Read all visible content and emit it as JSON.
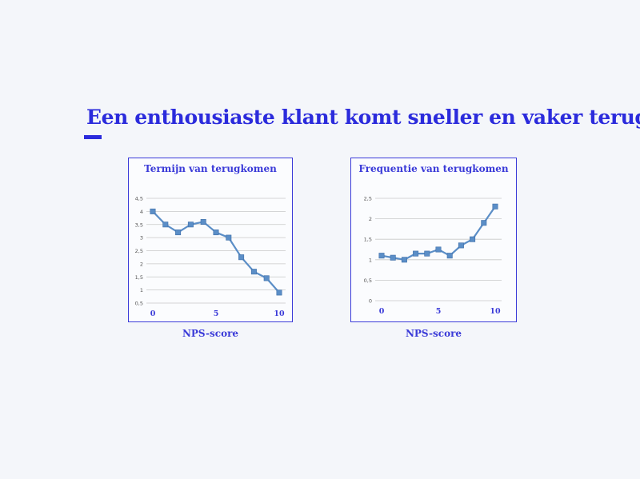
{
  "slide": {
    "title": "Een enthousiaste klant komt sneller en vaker terug"
  },
  "colors": {
    "accent": "#2b2bdc",
    "series": "#5b8ec7",
    "grid": "#c8c8c8"
  },
  "chart_data": [
    {
      "type": "line",
      "title": "Termijn van terugkomen",
      "xlabel": "NPS-score",
      "ylabel": "",
      "x": [
        0,
        1,
        2,
        3,
        4,
        5,
        6,
        7,
        8,
        9,
        10
      ],
      "series": [
        {
          "values": [
            4.0,
            3.5,
            3.2,
            3.5,
            3.6,
            3.2,
            3.0,
            2.25,
            1.7,
            1.45,
            0.9
          ]
        }
      ],
      "ylim": [
        0.5,
        4.5
      ],
      "yticks": [
        0.5,
        1,
        1.5,
        2,
        2.5,
        3,
        3.5,
        4,
        4.5
      ],
      "ytick_labels": [
        "0,5",
        "1",
        "1,5",
        "2",
        "2,5",
        "3",
        "3,5",
        "4",
        "4,5"
      ],
      "xticks": [
        0,
        5,
        10
      ],
      "xtick_labels": [
        "0",
        "5",
        "10"
      ],
      "grid": true
    },
    {
      "type": "line",
      "title": "Frequentie van terugkomen",
      "xlabel": "NPS-score",
      "ylabel": "",
      "x": [
        0,
        1,
        2,
        3,
        4,
        5,
        6,
        7,
        8,
        9,
        10
      ],
      "series": [
        {
          "values": [
            1.1,
            1.05,
            1.0,
            1.15,
            1.15,
            1.25,
            1.1,
            1.35,
            1.5,
            1.9,
            2.3
          ]
        }
      ],
      "ylim": [
        0,
        2.5
      ],
      "yticks": [
        0,
        0.5,
        1,
        1.5,
        2,
        2.5
      ],
      "ytick_labels": [
        "0",
        "0,5",
        "1",
        "1,5",
        "2",
        "2,5"
      ],
      "xticks": [
        0,
        5,
        10
      ],
      "xtick_labels": [
        "0",
        "5",
        "10"
      ],
      "grid": true
    }
  ]
}
